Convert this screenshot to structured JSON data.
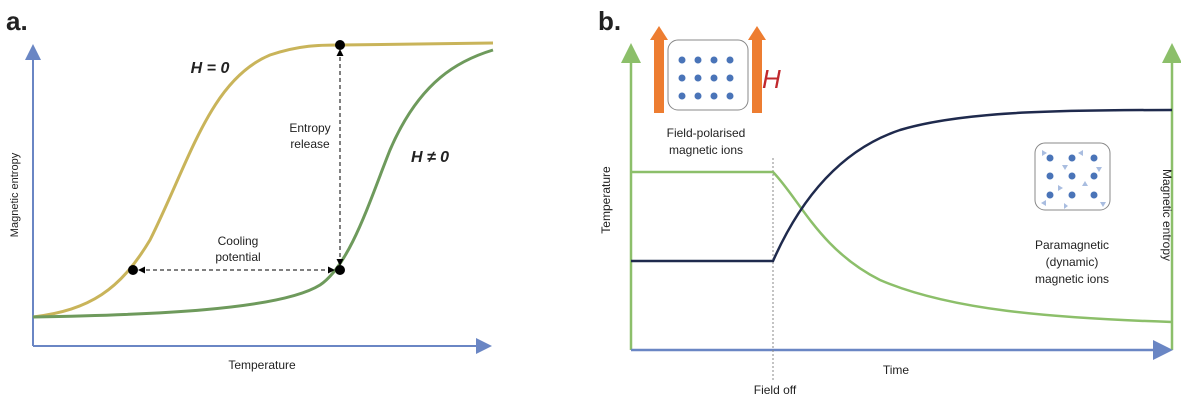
{
  "panel_a": {
    "label": "a.",
    "curve_h0": "H = 0",
    "curve_h1": "H ≠ 0",
    "entropy_release": [
      "Entropy",
      "release"
    ],
    "cooling_potential": [
      "Cooling",
      "potential"
    ],
    "y_axis": "Magnetic entropy",
    "x_axis": "Temperature"
  },
  "panel_b": {
    "label": "b.",
    "field_symbol": "H",
    "polarised": [
      "Field-polarised",
      "magnetic ions"
    ],
    "y_axis_left": "Temperature",
    "y_axis_right": "Magnetic entropy",
    "x_axis": "Time",
    "field_off": "Field off",
    "paramagnetic": [
      "Paramagnetic",
      "(dynamic)",
      "magnetic ions"
    ]
  }
}
